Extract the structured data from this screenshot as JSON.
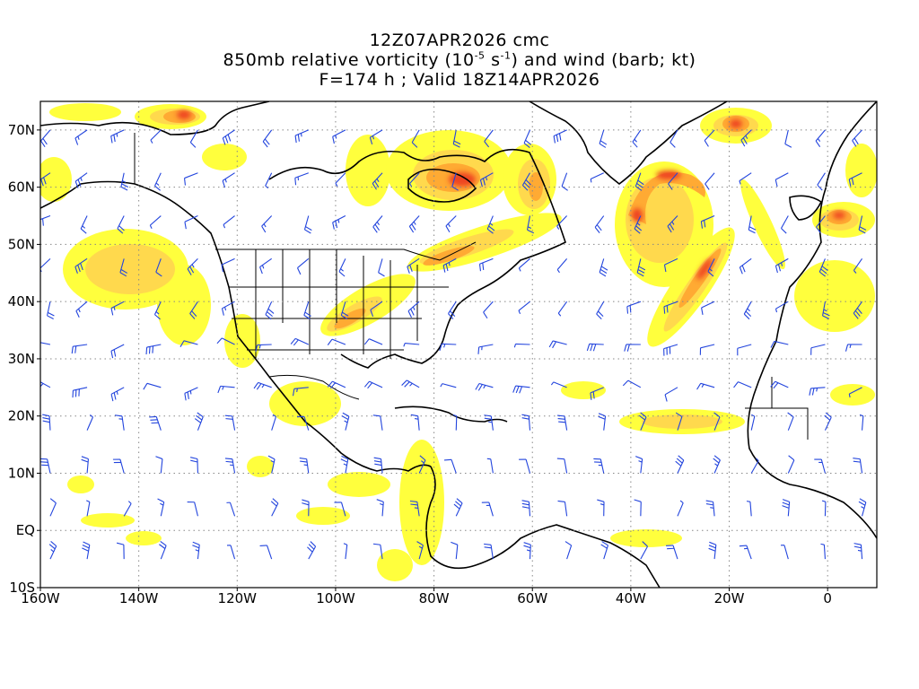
{
  "title": {
    "line1": "12Z07APR2026 cmc",
    "line2_pre": "850mb relative vorticity (10",
    "line2_exp1": "-5",
    "line2_mid": " s",
    "line2_exp2": "-1",
    "line2_post": ") and wind (barb; kt)",
    "line3": "F=174 h ; Valid 18Z14APR2026"
  },
  "map": {
    "projection": "cylindrical-equidistant",
    "lon_range": [
      -160,
      10
    ],
    "lat_range": [
      -10,
      75
    ],
    "grid_style": "dotted",
    "lat_labels": [
      "70N",
      "60N",
      "50N",
      "40N",
      "30N",
      "20N",
      "10N",
      "EQ",
      "10S"
    ],
    "lat_values": [
      70,
      60,
      50,
      40,
      30,
      20,
      10,
      0,
      -10
    ],
    "lon_labels": [
      "160W",
      "140W",
      "120W",
      "100W",
      "80W",
      "60W",
      "40W",
      "20W",
      "0"
    ],
    "lon_values": [
      -160,
      -140,
      -120,
      -100,
      -80,
      -60,
      -40,
      -20,
      0
    ],
    "fill_levels": [
      "#ffff33",
      "#ffd94d",
      "#ffaa33",
      "#ff7733",
      "#ee4422",
      "#cc1111"
    ],
    "barb_color": "#2244dd",
    "coast_color": "#000000"
  }
}
